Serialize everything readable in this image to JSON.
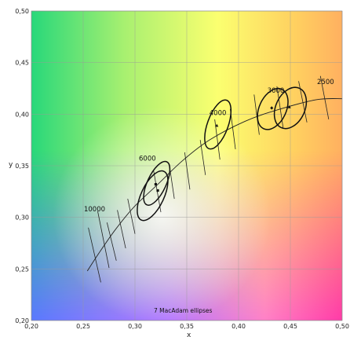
{
  "chart_data": {
    "type": "scatter",
    "title": "",
    "xlabel": "x",
    "ylabel": "y",
    "xlim": [
      0.2,
      0.5
    ],
    "ylim": [
      0.2,
      0.5
    ],
    "x_ticks": [
      "0,20",
      "0,25",
      "0,30",
      "0,35",
      "0,40",
      "0,45",
      "0,50"
    ],
    "y_ticks": [
      "0,20",
      "0,25",
      "0,30",
      "0,35",
      "0,40",
      "0,45",
      "0,50"
    ],
    "grid": true,
    "background": "CIE 1931 chromaticity colour field",
    "planckian_locus": [
      [
        0.254,
        0.248
      ],
      [
        0.265,
        0.265
      ],
      [
        0.281,
        0.288
      ],
      [
        0.299,
        0.31
      ],
      [
        0.322,
        0.332
      ],
      [
        0.346,
        0.355
      ],
      [
        0.372,
        0.375
      ],
      [
        0.406,
        0.393
      ],
      [
        0.437,
        0.404
      ],
      [
        0.475,
        0.414
      ],
      [
        0.5,
        0.415
      ]
    ],
    "cct_labels": [
      {
        "text": "10000",
        "x": 0.261,
        "y": 0.306
      },
      {
        "text": "6000",
        "x": 0.312,
        "y": 0.355
      },
      {
        "text": "4000",
        "x": 0.38,
        "y": 0.399
      },
      {
        "text": "3000",
        "x": 0.436,
        "y": 0.421
      },
      {
        "text": "2500",
        "x": 0.484,
        "y": 0.429
      }
    ],
    "isotemperature_lines": [
      {
        "x1": 0.255,
        "y1": 0.29,
        "x2": 0.267,
        "y2": 0.237
      },
      {
        "x1": 0.264,
        "y1": 0.306,
        "x2": 0.275,
        "y2": 0.251
      },
      {
        "x1": 0.273,
        "y1": 0.295,
        "x2": 0.282,
        "y2": 0.258
      },
      {
        "x1": 0.283,
        "y1": 0.307,
        "x2": 0.291,
        "y2": 0.27
      },
      {
        "x1": 0.293,
        "y1": 0.318,
        "x2": 0.3,
        "y2": 0.284
      },
      {
        "x1": 0.318,
        "y1": 0.345,
        "x2": 0.325,
        "y2": 0.305
      },
      {
        "x1": 0.333,
        "y1": 0.352,
        "x2": 0.338,
        "y2": 0.318
      },
      {
        "x1": 0.348,
        "y1": 0.363,
        "x2": 0.353,
        "y2": 0.327
      },
      {
        "x1": 0.363,
        "y1": 0.375,
        "x2": 0.368,
        "y2": 0.341
      },
      {
        "x1": 0.377,
        "y1": 0.395,
        "x2": 0.382,
        "y2": 0.356
      },
      {
        "x1": 0.392,
        "y1": 0.405,
        "x2": 0.397,
        "y2": 0.366
      },
      {
        "x1": 0.415,
        "y1": 0.419,
        "x2": 0.42,
        "y2": 0.38
      },
      {
        "x1": 0.437,
        "y1": 0.427,
        "x2": 0.443,
        "y2": 0.387
      },
      {
        "x1": 0.458,
        "y1": 0.432,
        "x2": 0.466,
        "y2": 0.392
      },
      {
        "x1": 0.479,
        "y1": 0.437,
        "x2": 0.487,
        "y2": 0.395
      }
    ],
    "ellipses": [
      {
        "cx": 0.317,
        "cy": 0.321,
        "rx": 0.011,
        "ry": 0.026,
        "rot": 25
      },
      {
        "cx": 0.321,
        "cy": 0.333,
        "rx": 0.009,
        "ry": 0.023,
        "rot": 25
      },
      {
        "cx": 0.38,
        "cy": 0.39,
        "rx": 0.01,
        "ry": 0.025,
        "rot": 20
      },
      {
        "cx": 0.433,
        "cy": 0.405,
        "rx": 0.013,
        "ry": 0.021,
        "rot": 25
      },
      {
        "cx": 0.45,
        "cy": 0.406,
        "rx": 0.014,
        "ry": 0.021,
        "rot": 25
      }
    ],
    "points": [
      {
        "x": 0.32,
        "y": 0.332,
        "marker": "square"
      },
      {
        "x": 0.322,
        "y": 0.326,
        "marker": "square"
      },
      {
        "x": 0.379,
        "y": 0.389,
        "marker": "triangle"
      },
      {
        "x": 0.432,
        "y": 0.406,
        "marker": "diamond"
      },
      {
        "x": 0.449,
        "y": 0.407,
        "marker": "triangle"
      }
    ],
    "annotation": "7  MacAdam ellipses"
  },
  "colors": {
    "grid": "#9a9a9a",
    "curve": "#222222",
    "axis_text": "#222222"
  }
}
